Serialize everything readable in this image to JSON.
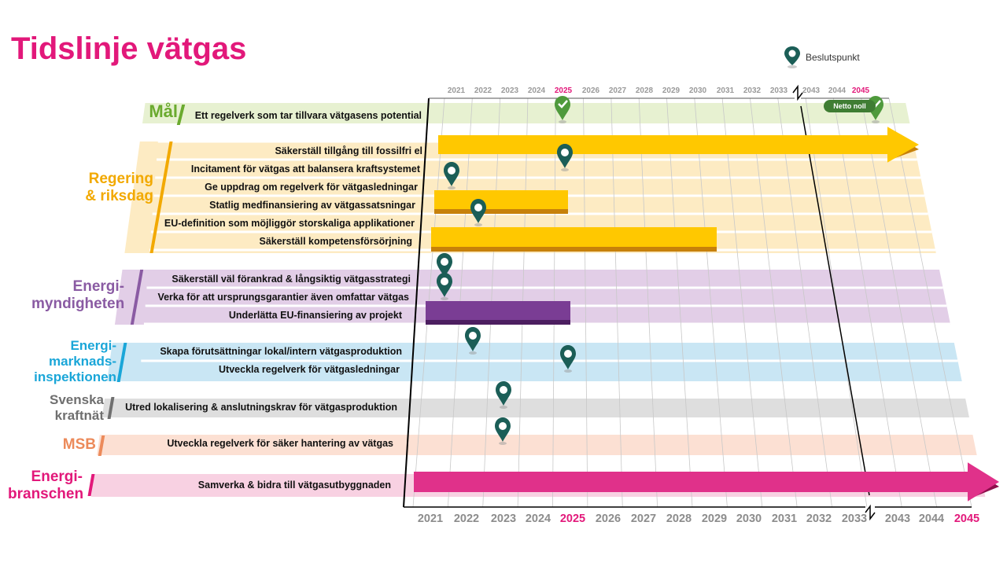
{
  "title": "Tidslinje vätgas",
  "legend": {
    "label": "Beslutspunkt"
  },
  "years_top": [
    "2021",
    "2022",
    "2023",
    "2024",
    "2025",
    "2026",
    "2027",
    "2028",
    "2029",
    "2030",
    "2031",
    "2032",
    "2033",
    "2043",
    "2044",
    "2045"
  ],
  "years_bottom": [
    "2021",
    "2022",
    "2023",
    "2024",
    "2025",
    "2026",
    "2027",
    "2028",
    "2029",
    "2030",
    "2031",
    "2032",
    "2033",
    "2043",
    "2044",
    "2045"
  ],
  "highlight_years": [
    "2025",
    "2045"
  ],
  "colors": {
    "magenta": "#e2187a",
    "green": "#6aaa2e",
    "orange": "#f2a900",
    "purple": "#8a5ba3",
    "blue": "#1aa6d8",
    "gray": "#6f6f6f",
    "salmon": "#ec8a5a",
    "pin": "#1b5e57",
    "gold_bar": "#ffc800",
    "purple_bar": "#7a3d94",
    "pink_bar": "#e0318a"
  },
  "categories": [
    {
      "name": "Mål",
      "rows": [
        {
          "label": "Ett regelverk som tar tillvara vätgasens potential",
          "pins": [
            "2025"
          ],
          "badge": "Netto noll"
        }
      ]
    },
    {
      "name": "Regering & riksdag",
      "rows": [
        {
          "label": "Säkerställ tillgång till fossilfri el"
        },
        {
          "label": "Incitament för vätgas att balansera kraftsystemet",
          "pins": [
            "2025"
          ]
        },
        {
          "label": "Ge uppdrag om regelverk för vätgasledningar",
          "pins": [
            "2021"
          ]
        },
        {
          "label": "Statlig medfinansiering av vätgassatsningar"
        },
        {
          "label": "EU-definition som möjliggör storskaliga applikationer",
          "pins": [
            "2022"
          ]
        },
        {
          "label": "Säkerställ kompetensförsörjning"
        }
      ]
    },
    {
      "name": "Energimyndigheten",
      "rows": [
        {
          "label": "Säkerställ väl förankrad & långsiktig vätgasstrategi",
          "pins": [
            "2021"
          ]
        },
        {
          "label": "Verka för att ursprungsgarantier även omfattar vätgas",
          "pins": [
            "2021"
          ]
        },
        {
          "label": "Underlätta EU-finansiering av projekt"
        }
      ]
    },
    {
      "name": "Energimarknadsinspektionen",
      "rows": [
        {
          "label": "Skapa förutsättningar lokal/intern vätgasproduktion",
          "pins": [
            "2022"
          ]
        },
        {
          "label": "Utveckla regelverk för vätgasledningar",
          "pins": [
            "2025"
          ]
        }
      ]
    },
    {
      "name": "Svenska kraftnät",
      "rows": [
        {
          "label": "Utred lokalisering & anslutningskrav för vätgasproduktion",
          "pins": [
            "2023"
          ]
        }
      ]
    },
    {
      "name": "MSB",
      "rows": [
        {
          "label": "Utveckla regelverk för säker hantering av vätgas",
          "pins": [
            "2023"
          ]
        }
      ]
    },
    {
      "name": "Energibranschen",
      "rows": [
        {
          "label": "Samverka & bidra till vätgasutbyggnaden"
        }
      ]
    }
  ],
  "cat_lines": {
    "mal": [
      "Mål"
    ],
    "reg": [
      "Regering",
      "& riksdag"
    ],
    "em": [
      "Energi-",
      "myndigheten"
    ],
    "ei": [
      "Energi-",
      "marknads-",
      "inspektionen"
    ],
    "svk": [
      "Svenska",
      "kraftnät"
    ],
    "msb": [
      "MSB"
    ],
    "eb": [
      "Energi-",
      "branschen"
    ]
  }
}
